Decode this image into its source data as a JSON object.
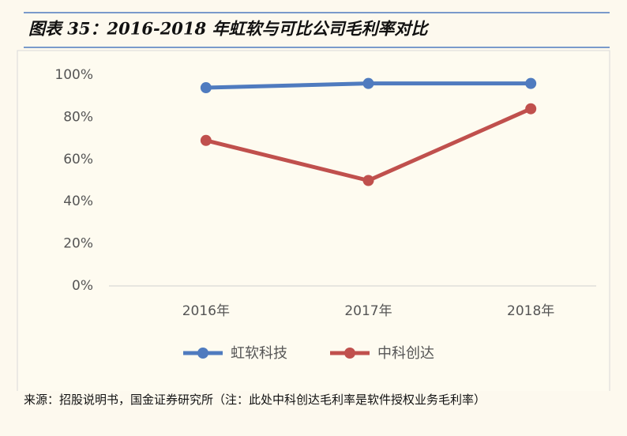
{
  "header": {
    "title": "图表 35：2016-2018 年虹软与可比公司毛利率对比"
  },
  "chart_data": {
    "type": "line",
    "categories": [
      "2016年",
      "2017年",
      "2018年"
    ],
    "series": [
      {
        "name": "虹软科技",
        "color": "#4f7bbf",
        "values": [
          94,
          96,
          96
        ]
      },
      {
        "name": "中科创达",
        "color": "#c0504d",
        "values": [
          69,
          50,
          84
        ]
      }
    ],
    "ylim": [
      0,
      100
    ],
    "yticks": [
      {
        "value": 0,
        "label": "0%"
      },
      {
        "value": 20,
        "label": "20%"
      },
      {
        "value": 40,
        "label": "40%"
      },
      {
        "value": 60,
        "label": "60%"
      },
      {
        "value": 80,
        "label": "80%"
      },
      {
        "value": 100,
        "label": "100%"
      }
    ],
    "grid": false
  },
  "footer": {
    "source": "来源：招股说明书，国金证券研究所（注：此处中科创达毛利率是软件授权业务毛利率）"
  }
}
